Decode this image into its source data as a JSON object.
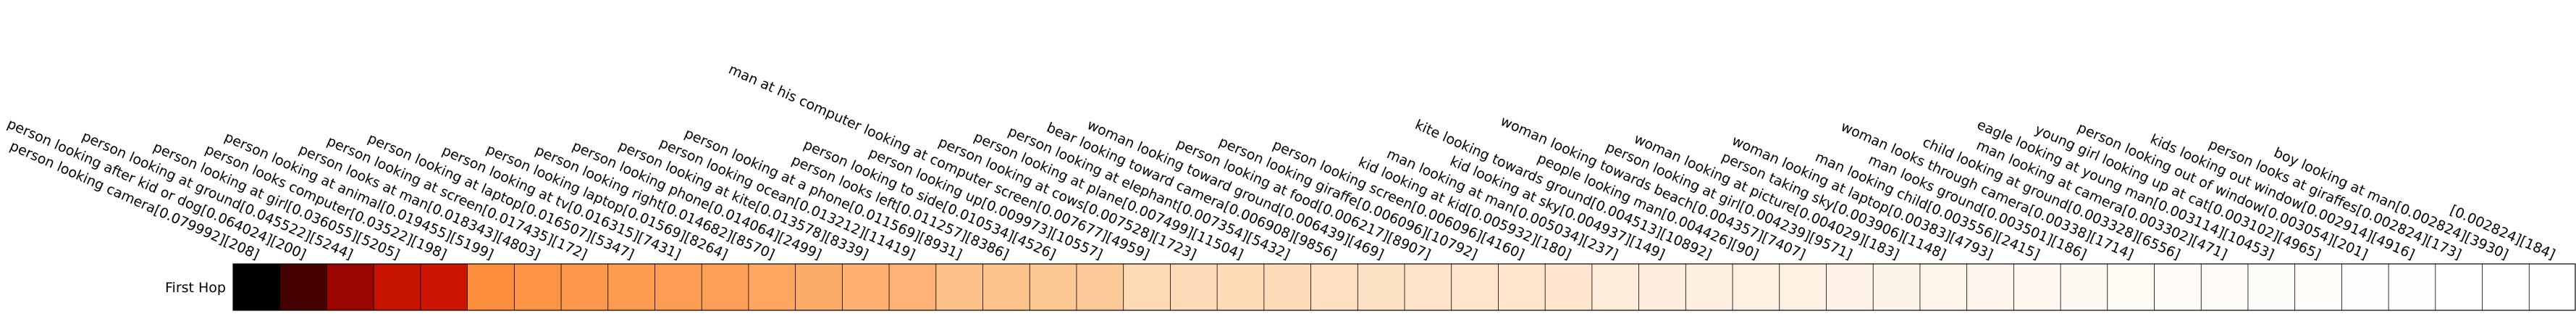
{
  "chart_data": {
    "type": "heatmap",
    "rows": [
      "First Hop"
    ],
    "colormap": "Oranges-Hot",
    "columns": [
      {
        "label": "person looking camera[0.079992][208]",
        "value": 0.079992
      },
      {
        "label": "person looking after kid or dog[0.064024][200]",
        "value": 0.064024
      },
      {
        "label": "person looking at ground[0.045522][5244]",
        "value": 0.045522
      },
      {
        "label": "person looking at girl[0.036055][5205]",
        "value": 0.036055
      },
      {
        "label": "person looks computer[0.03522][198]",
        "value": 0.03522
      },
      {
        "label": "person looking at animal[0.019455][5199]",
        "value": 0.019455
      },
      {
        "label": "person looks at man[0.018343][4803]",
        "value": 0.018343
      },
      {
        "label": "person looking at screen[0.017435][172]",
        "value": 0.017435
      },
      {
        "label": "person looking at laptop[0.016507][5347]",
        "value": 0.016507
      },
      {
        "label": "person looking at tv[0.016315][7431]",
        "value": 0.016315
      },
      {
        "label": "person looking laptop[0.01569][8264]",
        "value": 0.01569
      },
      {
        "label": "person looking right[0.014682][8570]",
        "value": 0.014682
      },
      {
        "label": "person looking phone[0.014064][2499]",
        "value": 0.014064
      },
      {
        "label": "person looking at kite[0.013578][8339]",
        "value": 0.013578
      },
      {
        "label": "person looking ocean[0.013212][11419]",
        "value": 0.013212
      },
      {
        "label": "person looking at a phone[0.011569][8931]",
        "value": 0.011569
      },
      {
        "label": "person looks left[0.011257][8386]",
        "value": 0.011257
      },
      {
        "label": "person looking to side[0.010534][4526]",
        "value": 0.010534
      },
      {
        "label": "person looking up[0.009973][10557]",
        "value": 0.009973
      },
      {
        "label": "man at his computer looking at computer screen[0.007677][4959]",
        "value": 0.007677
      },
      {
        "label": "person looking at cows[0.007528][1723]",
        "value": 0.007528
      },
      {
        "label": "person looking at plane[0.007499][11504]",
        "value": 0.007499
      },
      {
        "label": "person looking at elephant[0.007354][5432]",
        "value": 0.007354
      },
      {
        "label": "bear looking toward camera[0.006908][9856]",
        "value": 0.006908
      },
      {
        "label": "woman looking toward ground[0.006439][469]",
        "value": 0.006439
      },
      {
        "label": "person looking at food[0.006217][8907]",
        "value": 0.006217
      },
      {
        "label": "person looking giraffe[0.006096][10792]",
        "value": 0.006096
      },
      {
        "label": "person looking screen[0.006096][4160]",
        "value": 0.006096
      },
      {
        "label": "kid looking at kid[0.005932][180]",
        "value": 0.005932
      },
      {
        "label": "man looking at man[0.005034][237]",
        "value": 0.005034
      },
      {
        "label": "kid looking at sky[0.004937][149]",
        "value": 0.004937
      },
      {
        "label": "kite looking towards ground[0.004513][10892]",
        "value": 0.004513
      },
      {
        "label": "people looking man[0.004426][90]",
        "value": 0.004426
      },
      {
        "label": "woman looking towards beach[0.004357][7407]",
        "value": 0.004357
      },
      {
        "label": "person looking at girl[0.004239][9571]",
        "value": 0.004239
      },
      {
        "label": "woman looking at picture[0.004029][183]",
        "value": 0.004029
      },
      {
        "label": "person taking sky[0.003906][1148]",
        "value": 0.003906
      },
      {
        "label": "woman looking at laptop[0.00383][4793]",
        "value": 0.00383
      },
      {
        "label": "man looking child[0.003556][2415]",
        "value": 0.003556
      },
      {
        "label": "man looks ground[0.003501][186]",
        "value": 0.003501
      },
      {
        "label": "woman looks through camera[0.00338][1714]",
        "value": 0.00338
      },
      {
        "label": "child looking at ground[0.003328][6556]",
        "value": 0.003328
      },
      {
        "label": "man looking at camera[0.003302][471]",
        "value": 0.003302
      },
      {
        "label": "eagle looking at young man[0.003114][10453]",
        "value": 0.003114
      },
      {
        "label": "young girl looking up at cat[0.003102][4965]",
        "value": 0.003102
      },
      {
        "label": "person looking out of window[0.003054][201]",
        "value": 0.003054
      },
      {
        "label": "kids looking out window[0.002914][4916]",
        "value": 0.002914
      },
      {
        "label": "person looks at giraffes[0.002824][173]",
        "value": 0.002824
      },
      {
        "label": "boy looking at man[0.002824][3930]",
        "value": 0.002824
      },
      {
        "label": "[0.002824][184]",
        "value": 0.002824
      }
    ],
    "xlabel": "",
    "ylabel": "",
    "grid": false,
    "legend": "none"
  }
}
